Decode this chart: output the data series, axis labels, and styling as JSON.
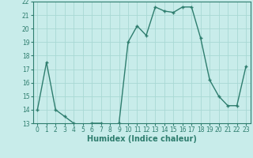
{
  "x": [
    0,
    1,
    2,
    3,
    4,
    5,
    6,
    7,
    8,
    9,
    10,
    11,
    12,
    13,
    14,
    15,
    16,
    17,
    18,
    19,
    20,
    21,
    22,
    23
  ],
  "y": [
    14,
    17.5,
    14,
    13.5,
    13,
    12.8,
    13,
    13,
    12.8,
    13,
    19,
    20.2,
    19.5,
    21.6,
    21.3,
    21.2,
    21.6,
    21.6,
    19.3,
    16.2,
    15,
    14.3,
    14.3,
    17.2
  ],
  "line_color": "#2e7d6e",
  "marker": "+",
  "bg_color": "#c8ecea",
  "grid_color": "#a8d8d4",
  "xlabel": "Humidex (Indice chaleur)",
  "ylim": [
    13,
    22
  ],
  "xlim": [
    -0.5,
    23.5
  ],
  "yticks": [
    13,
    14,
    15,
    16,
    17,
    18,
    19,
    20,
    21,
    22
  ],
  "xticks": [
    0,
    1,
    2,
    3,
    4,
    5,
    6,
    7,
    8,
    9,
    10,
    11,
    12,
    13,
    14,
    15,
    16,
    17,
    18,
    19,
    20,
    21,
    22,
    23
  ],
  "tick_label_fontsize": 5.5,
  "xlabel_fontsize": 7.0,
  "line_width": 1.0,
  "marker_size": 3.5,
  "marker_edge_width": 1.0
}
